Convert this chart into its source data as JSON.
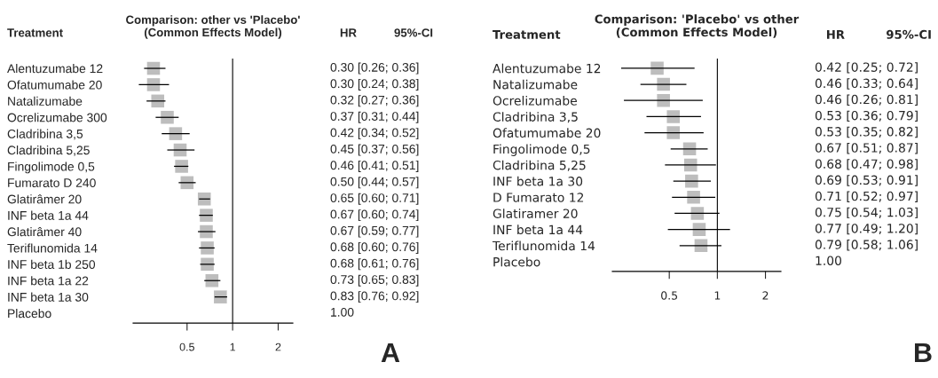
{
  "chart_data": [
    {
      "type": "scatter",
      "orientation": "horizontal",
      "title": "Comparison: other vs 'Placebo'\n(Common Effects Model)",
      "ylabel": "Treatment",
      "categories": [
        "Alentuzumabe 12",
        "Ofatumumabe 20",
        "Natalizumabe",
        "Ocrelizumabe 300",
        "Cladribina 3,5",
        "Cladribina 5,25",
        "Fingolimode 0,5",
        "Fumarato D 240",
        "Glatirâmer 20",
        "INF beta 1a 44",
        "Glatirâmer 40",
        "Teriflunomida 14",
        "INF beta 1b 250",
        "INF beta 1a 22",
        "INF beta 1a 30",
        "Placebo"
      ],
      "values": [
        0.3,
        0.3,
        0.32,
        0.37,
        0.42,
        0.45,
        0.46,
        0.5,
        0.65,
        0.67,
        0.67,
        0.68,
        0.68,
        0.73,
        0.83,
        null
      ],
      "errors": [
        [
          0.26,
          0.36
        ],
        [
          0.24,
          0.38
        ],
        [
          0.27,
          0.36
        ],
        [
          0.31,
          0.44
        ],
        [
          0.34,
          0.52
        ],
        [
          0.37,
          0.56
        ],
        [
          0.41,
          0.51
        ],
        [
          0.44,
          0.57
        ],
        [
          0.6,
          0.71
        ],
        [
          0.6,
          0.74
        ],
        [
          0.59,
          0.77
        ],
        [
          0.6,
          0.76
        ],
        [
          0.61,
          0.76
        ],
        [
          0.65,
          0.83
        ],
        [
          0.76,
          0.92
        ],
        null
      ],
      "value_labels": [
        "0.30 [0.26; 0.36]",
        "0.30 [0.24; 0.38]",
        "0.32 [0.27; 0.36]",
        "0.37 [0.31; 0.44]",
        "0.42 [0.34; 0.52]",
        "0.45 [0.37; 0.56]",
        "0.46 [0.41; 0.51]",
        "0.50 [0.44; 0.57]",
        "0.65 [0.60; 0.71]",
        "0.67 [0.60; 0.74]",
        "0.67 [0.59; 0.77]",
        "0.68 [0.60; 0.76]",
        "0.68 [0.61; 0.76]",
        "0.73 [0.65; 0.83]",
        "0.83 [0.76; 0.92]",
        "1.00"
      ],
      "annotations": [
        "HR",
        "95%-CI",
        "A"
      ],
      "color": "#bdbdbd",
      "marker": "square",
      "log": "x",
      "grid": false,
      "xlim": [
        0.22,
        2.5
      ],
      "xticks": [
        0.5,
        1,
        2
      ],
      "ref_lines": [
        {
          "axis": "x",
          "value": 1
        }
      ]
    },
    {
      "type": "scatter",
      "orientation": "horizontal",
      "title": "Comparison: 'Placebo' vs other\n(Common Effects Model)",
      "ylabel": "Treatment",
      "categories": [
        "Alentuzumabe 12",
        "Natalizumabe",
        "Ocrelizumabe",
        "Cladribina 3,5",
        "Ofatumumabe 20",
        "Fingolimode 0,5",
        "Cladribina 5,25",
        "INF beta 1a 30",
        "D Fumarato 12",
        "Glatiramer 20",
        "INF beta 1a 44",
        "Teriflunomida 14",
        "Placebo"
      ],
      "values": [
        0.42,
        0.46,
        0.46,
        0.53,
        0.53,
        0.67,
        0.68,
        0.69,
        0.71,
        0.75,
        0.77,
        0.79,
        null
      ],
      "errors": [
        [
          0.25,
          0.72
        ],
        [
          0.33,
          0.64
        ],
        [
          0.26,
          0.81
        ],
        [
          0.36,
          0.79
        ],
        [
          0.35,
          0.82
        ],
        [
          0.51,
          0.87
        ],
        [
          0.47,
          0.98
        ],
        [
          0.53,
          0.91
        ],
        [
          0.52,
          0.97
        ],
        [
          0.54,
          1.03
        ],
        [
          0.49,
          1.2
        ],
        [
          0.58,
          1.06
        ],
        null
      ],
      "value_labels": [
        "0.42 [0.25; 0.72]",
        "0.46 [0.33; 0.64]",
        "0.46 [0.26; 0.81]",
        "0.53 [0.36; 0.79]",
        "0.53 [0.35; 0.82]",
        "0.67 [0.51; 0.87]",
        "0.68 [0.47; 0.98]",
        "0.69 [0.53; 0.91]",
        "0.71 [0.52; 0.97]",
        "0.75 [0.54; 1.03]",
        "0.77 [0.49; 1.20]",
        "0.79 [0.58; 1.06]",
        "1.00"
      ],
      "annotations": [
        "HR",
        "95%-CI",
        "B"
      ],
      "color": "#bdbdbd",
      "marker": "square",
      "log": "x",
      "grid": false,
      "xlim": [
        0.22,
        2.5
      ],
      "xticks": [
        0.5,
        1,
        2
      ],
      "ref_lines": [
        {
          "axis": "x",
          "value": 1
        }
      ]
    }
  ]
}
